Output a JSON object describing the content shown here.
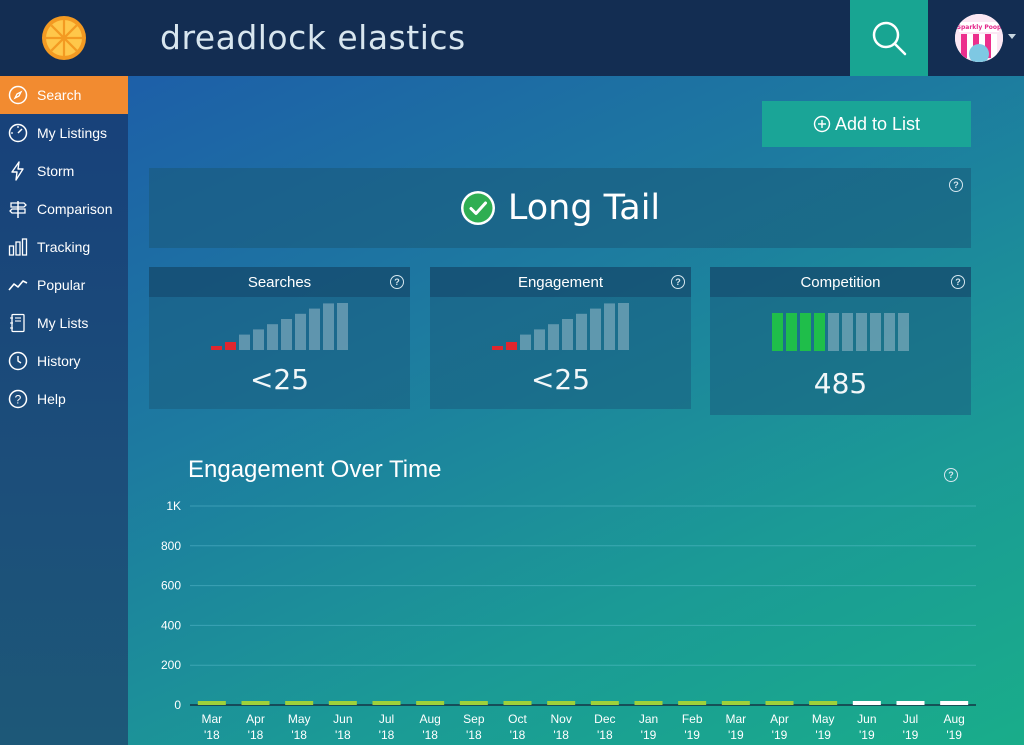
{
  "header": {
    "search_query": "dreadlock elastics",
    "avatar_text": "Sparkly Poop"
  },
  "sidebar": {
    "items": [
      {
        "label": "Search",
        "icon": "compass-icon",
        "active": true
      },
      {
        "label": "My Listings",
        "icon": "speedometer-icon",
        "active": false
      },
      {
        "label": "Storm",
        "icon": "lightning-icon",
        "active": false
      },
      {
        "label": "Comparison",
        "icon": "signpost-icon",
        "active": false
      },
      {
        "label": "Tracking",
        "icon": "bar-chart-icon",
        "active": false
      },
      {
        "label": "Popular",
        "icon": "trend-line-icon",
        "active": false
      },
      {
        "label": "My Lists",
        "icon": "notebook-icon",
        "active": false
      },
      {
        "label": "History",
        "icon": "clock-icon",
        "active": false
      },
      {
        "label": "Help",
        "icon": "question-icon",
        "active": false
      }
    ]
  },
  "actions": {
    "add_to_list_label": "Add to List"
  },
  "status": {
    "label": "Long Tail",
    "icon": "check-circle-icon"
  },
  "metrics": [
    {
      "key": "searches",
      "title": "Searches",
      "value": "<25",
      "bars_total": 10,
      "bars_filled": 2,
      "fill_color": "#e0262e"
    },
    {
      "key": "engagement",
      "title": "Engagement",
      "value": "<25",
      "bars_total": 10,
      "bars_filled": 2,
      "fill_color": "#e0262e"
    },
    {
      "key": "competition",
      "title": "Competition",
      "value": "485",
      "bars_total": 10,
      "bars_filled": 4,
      "fill_color": "#1fbe4a"
    }
  ],
  "chart_data": {
    "type": "bar",
    "title": "Engagement Over Time",
    "xlabel": "",
    "ylabel": "",
    "ylim": [
      0,
      1000
    ],
    "y_ticks": [
      "0",
      "200",
      "400",
      "600",
      "800",
      "1K"
    ],
    "categories": [
      "Mar\n'18",
      "Apr\n'18",
      "May\n'18",
      "Jun\n'18",
      "Jul\n'18",
      "Aug\n'18",
      "Sep\n'18",
      "Oct\n'18",
      "Nov\n'18",
      "Dec\n'18",
      "Jan\n'19",
      "Feb\n'19",
      "Mar\n'19",
      "Apr\n'19",
      "May\n'19",
      "Jun\n'19",
      "Jul\n'19",
      "Aug\n'19"
    ],
    "values": [
      20,
      20,
      20,
      20,
      20,
      20,
      20,
      20,
      20,
      20,
      20,
      20,
      20,
      20,
      20,
      20,
      20,
      20
    ],
    "bar_colors": [
      "#9fd13a",
      "#9fd13a",
      "#9fd13a",
      "#9fd13a",
      "#9fd13a",
      "#9fd13a",
      "#9fd13a",
      "#9fd13a",
      "#9fd13a",
      "#9fd13a",
      "#9fd13a",
      "#9fd13a",
      "#9fd13a",
      "#9fd13a",
      "#9fd13a",
      "#ffffff",
      "#ffffff",
      "#ffffff"
    ],
    "grid": true
  },
  "colors": {
    "accent_orange": "#f28b30",
    "accent_teal": "#1aa597",
    "success_green": "#1fbe4a",
    "danger_red": "#e0262e"
  }
}
